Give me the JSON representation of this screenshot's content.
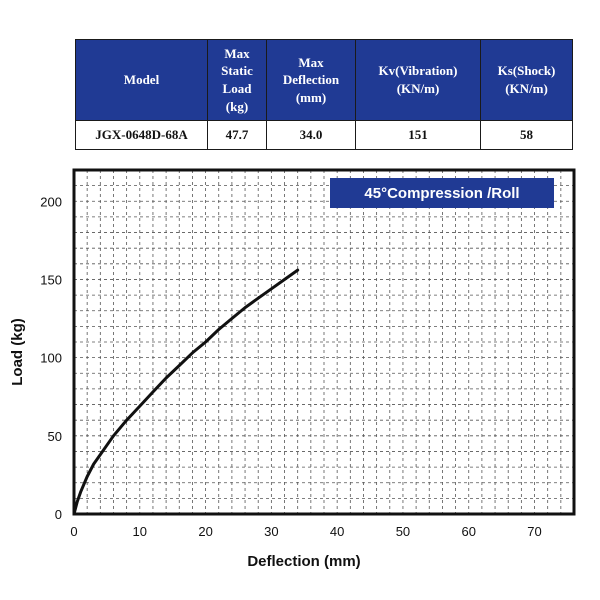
{
  "spec_table": {
    "headers": [
      [
        "Model"
      ],
      [
        "Max",
        "Static",
        "Load",
        "(kg)"
      ],
      [
        "Max",
        "Deflection",
        "(mm)"
      ],
      [
        "Kv(Vibration)",
        "(KN/m)"
      ],
      [
        "Ks(Shock)",
        "(KN/m)"
      ]
    ],
    "row": {
      "model": "JGX-0648D-68A",
      "max_static_load": "47.7",
      "max_deflection": "34.0",
      "kv": "151",
      "ks": "58"
    }
  },
  "chart_data": {
    "type": "line",
    "title": "45°Compression /Roll",
    "xlabel": "Deflection (mm)",
    "ylabel": "Load (kg)",
    "xlim": [
      0,
      76
    ],
    "ylim": [
      0,
      220
    ],
    "xticks": [
      0,
      10,
      20,
      30,
      40,
      50,
      60,
      70
    ],
    "yticks": [
      0,
      50,
      100,
      150,
      200
    ],
    "grid": true,
    "series": [
      {
        "x": [
          0,
          0.5,
          1,
          2,
          3,
          4,
          5,
          6,
          8,
          10,
          12,
          14,
          16,
          18,
          20,
          22,
          24,
          26,
          28,
          30,
          32,
          34
        ],
        "y": [
          0,
          8,
          14,
          24,
          32,
          38,
          44,
          50,
          60,
          69,
          78,
          87,
          95,
          103,
          110,
          118,
          125,
          132,
          138,
          144,
          150,
          156
        ],
        "color": "#111111"
      }
    ],
    "badge_color": "#203a94"
  }
}
